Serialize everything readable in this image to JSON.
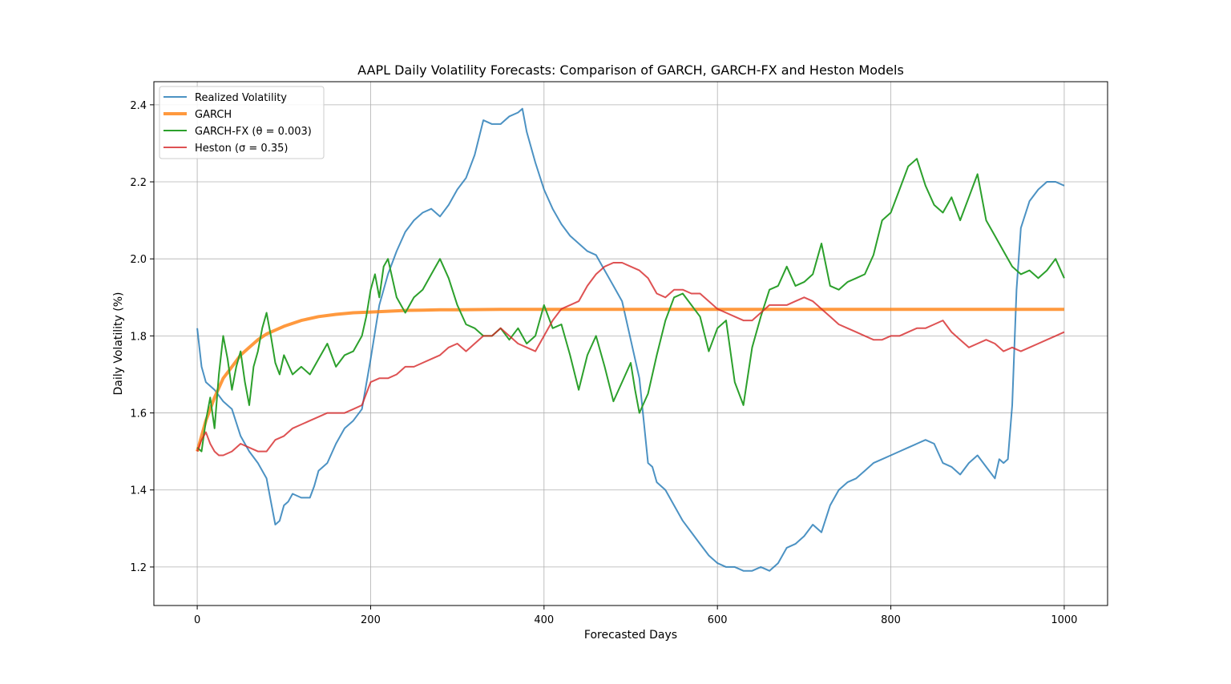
{
  "chart_data": {
    "type": "line",
    "title": "AAPL Daily Volatility Forecasts: Comparison of GARCH, GARCH-FX and Heston Models",
    "xlabel": "Forecasted Days",
    "ylabel": "Daily Volatility (%)",
    "xlim": [
      -50,
      1050
    ],
    "ylim": [
      1.1,
      2.46
    ],
    "xticks": [
      0,
      200,
      400,
      600,
      800,
      1000
    ],
    "yticks": [
      1.2,
      1.4,
      1.6,
      1.8,
      2.0,
      2.2,
      2.4
    ],
    "xtick_labels": [
      "0",
      "200",
      "400",
      "600",
      "800",
      "1000"
    ],
    "ytick_labels": [
      "1.2",
      "1.4",
      "1.6",
      "1.8",
      "2.0",
      "2.2",
      "2.4"
    ],
    "grid": true,
    "legend_position": "upper-left",
    "series": [
      {
        "name": "Realized Volatility",
        "color": "#1f77b4",
        "x": [
          0,
          5,
          10,
          20,
          30,
          40,
          50,
          60,
          70,
          80,
          85,
          90,
          95,
          100,
          105,
          110,
          120,
          130,
          135,
          140,
          150,
          160,
          170,
          180,
          190,
          200,
          210,
          220,
          230,
          240,
          250,
          260,
          270,
          280,
          290,
          300,
          310,
          320,
          330,
          340,
          350,
          360,
          370,
          375,
          380,
          390,
          400,
          410,
          420,
          430,
          440,
          450,
          460,
          470,
          480,
          490,
          500,
          510,
          515,
          520,
          525,
          530,
          540,
          550,
          560,
          570,
          580,
          590,
          600,
          610,
          620,
          630,
          640,
          650,
          660,
          670,
          680,
          690,
          700,
          710,
          720,
          730,
          740,
          750,
          760,
          770,
          780,
          790,
          800,
          810,
          820,
          830,
          840,
          850,
          860,
          870,
          880,
          890,
          900,
          910,
          920,
          925,
          930,
          935,
          940,
          945,
          950,
          960,
          970,
          980,
          990,
          1000
        ],
        "y": [
          1.82,
          1.72,
          1.68,
          1.66,
          1.63,
          1.61,
          1.54,
          1.5,
          1.47,
          1.43,
          1.37,
          1.31,
          1.32,
          1.36,
          1.37,
          1.39,
          1.38,
          1.38,
          1.41,
          1.45,
          1.47,
          1.52,
          1.56,
          1.58,
          1.61,
          1.74,
          1.88,
          1.96,
          2.02,
          2.07,
          2.1,
          2.12,
          2.13,
          2.11,
          2.14,
          2.18,
          2.21,
          2.27,
          2.36,
          2.35,
          2.35,
          2.37,
          2.38,
          2.39,
          2.33,
          2.25,
          2.18,
          2.13,
          2.09,
          2.06,
          2.04,
          2.02,
          2.01,
          1.97,
          1.93,
          1.89,
          1.79,
          1.69,
          1.58,
          1.47,
          1.46,
          1.42,
          1.4,
          1.36,
          1.32,
          1.29,
          1.26,
          1.23,
          1.21,
          1.2,
          1.2,
          1.19,
          1.19,
          1.2,
          1.19,
          1.21,
          1.25,
          1.26,
          1.28,
          1.31,
          1.29,
          1.36,
          1.4,
          1.42,
          1.43,
          1.45,
          1.47,
          1.48,
          1.49,
          1.5,
          1.51,
          1.52,
          1.53,
          1.52,
          1.47,
          1.46,
          1.44,
          1.47,
          1.49,
          1.46,
          1.43,
          1.48,
          1.47,
          1.48,
          1.62,
          1.92,
          2.08,
          2.15,
          2.18,
          2.2,
          2.2,
          2.19
        ]
      },
      {
        "name": "GARCH",
        "color": "#ff7f0e",
        "x": [
          0,
          5,
          10,
          15,
          20,
          30,
          40,
          50,
          60,
          70,
          80,
          90,
          100,
          120,
          140,
          160,
          180,
          200,
          220,
          240,
          260,
          280,
          300,
          350,
          400,
          500,
          600,
          700,
          800,
          900,
          1000
        ],
        "y": [
          1.5,
          1.54,
          1.58,
          1.61,
          1.64,
          1.69,
          1.72,
          1.75,
          1.77,
          1.79,
          1.805,
          1.815,
          1.825,
          1.84,
          1.85,
          1.856,
          1.86,
          1.862,
          1.864,
          1.866,
          1.867,
          1.868,
          1.868,
          1.869,
          1.869,
          1.869,
          1.869,
          1.869,
          1.869,
          1.869,
          1.869
        ]
      },
      {
        "name": "GARCH-FX (θ = 0.003)",
        "color": "#2ca02c",
        "x": [
          0,
          5,
          10,
          15,
          20,
          25,
          30,
          35,
          40,
          45,
          50,
          55,
          60,
          65,
          70,
          75,
          80,
          85,
          90,
          95,
          100,
          110,
          120,
          130,
          140,
          150,
          160,
          170,
          180,
          190,
          195,
          200,
          205,
          210,
          215,
          220,
          230,
          240,
          250,
          260,
          270,
          280,
          290,
          300,
          310,
          320,
          330,
          340,
          350,
          360,
          370,
          380,
          390,
          400,
          410,
          420,
          430,
          440,
          450,
          460,
          470,
          480,
          490,
          500,
          505,
          510,
          520,
          530,
          540,
          550,
          560,
          570,
          580,
          590,
          600,
          610,
          620,
          630,
          640,
          650,
          660,
          670,
          680,
          690,
          700,
          710,
          720,
          730,
          740,
          750,
          760,
          770,
          780,
          790,
          800,
          810,
          820,
          830,
          840,
          850,
          860,
          870,
          880,
          890,
          900,
          910,
          920,
          930,
          940,
          950,
          960,
          970,
          980,
          990,
          1000
        ],
        "y": [
          1.51,
          1.5,
          1.58,
          1.64,
          1.56,
          1.7,
          1.8,
          1.74,
          1.66,
          1.72,
          1.76,
          1.68,
          1.62,
          1.72,
          1.76,
          1.82,
          1.86,
          1.8,
          1.73,
          1.7,
          1.75,
          1.7,
          1.72,
          1.7,
          1.74,
          1.78,
          1.72,
          1.75,
          1.76,
          1.8,
          1.85,
          1.92,
          1.96,
          1.9,
          1.98,
          2.0,
          1.9,
          1.86,
          1.9,
          1.92,
          1.96,
          2.0,
          1.95,
          1.88,
          1.83,
          1.82,
          1.8,
          1.8,
          1.82,
          1.79,
          1.82,
          1.78,
          1.8,
          1.88,
          1.82,
          1.83,
          1.75,
          1.66,
          1.75,
          1.8,
          1.72,
          1.63,
          1.68,
          1.73,
          1.66,
          1.6,
          1.65,
          1.75,
          1.84,
          1.9,
          1.91,
          1.88,
          1.85,
          1.76,
          1.82,
          1.84,
          1.68,
          1.62,
          1.77,
          1.85,
          1.92,
          1.93,
          1.98,
          1.93,
          1.94,
          1.96,
          2.04,
          1.93,
          1.92,
          1.94,
          1.95,
          1.96,
          2.01,
          2.1,
          2.12,
          2.18,
          2.24,
          2.26,
          2.19,
          2.14,
          2.12,
          2.16,
          2.1,
          2.16,
          2.22,
          2.1,
          2.06,
          2.02,
          1.98,
          1.96,
          1.97,
          1.95,
          1.97,
          2.0,
          1.95
        ]
      },
      {
        "name": "Heston (σ = 0.35)",
        "color": "#d62728",
        "x": [
          0,
          5,
          10,
          15,
          20,
          25,
          30,
          40,
          50,
          60,
          70,
          80,
          90,
          100,
          110,
          120,
          130,
          140,
          150,
          160,
          170,
          180,
          190,
          200,
          210,
          220,
          230,
          240,
          250,
          260,
          270,
          280,
          290,
          300,
          310,
          320,
          330,
          340,
          350,
          360,
          370,
          380,
          390,
          400,
          410,
          420,
          430,
          440,
          450,
          460,
          470,
          480,
          490,
          500,
          510,
          520,
          530,
          540,
          550,
          560,
          570,
          580,
          590,
          600,
          610,
          620,
          630,
          640,
          650,
          660,
          670,
          680,
          690,
          700,
          710,
          720,
          730,
          740,
          750,
          760,
          770,
          780,
          790,
          800,
          810,
          820,
          830,
          840,
          850,
          860,
          870,
          880,
          890,
          900,
          910,
          920,
          930,
          940,
          950,
          960,
          970,
          980,
          990,
          1000
        ],
        "y": [
          1.5,
          1.53,
          1.55,
          1.52,
          1.5,
          1.49,
          1.49,
          1.5,
          1.52,
          1.51,
          1.5,
          1.5,
          1.53,
          1.54,
          1.56,
          1.57,
          1.58,
          1.59,
          1.6,
          1.6,
          1.6,
          1.61,
          1.62,
          1.68,
          1.69,
          1.69,
          1.7,
          1.72,
          1.72,
          1.73,
          1.74,
          1.75,
          1.77,
          1.78,
          1.76,
          1.78,
          1.8,
          1.8,
          1.82,
          1.8,
          1.78,
          1.77,
          1.76,
          1.8,
          1.84,
          1.87,
          1.88,
          1.89,
          1.93,
          1.96,
          1.98,
          1.99,
          1.99,
          1.98,
          1.97,
          1.95,
          1.91,
          1.9,
          1.92,
          1.92,
          1.91,
          1.91,
          1.89,
          1.87,
          1.86,
          1.85,
          1.84,
          1.84,
          1.86,
          1.88,
          1.88,
          1.88,
          1.89,
          1.9,
          1.89,
          1.87,
          1.85,
          1.83,
          1.82,
          1.81,
          1.8,
          1.79,
          1.79,
          1.8,
          1.8,
          1.81,
          1.82,
          1.82,
          1.83,
          1.84,
          1.81,
          1.79,
          1.77,
          1.78,
          1.79,
          1.78,
          1.76,
          1.77,
          1.76,
          1.77,
          1.78,
          1.79,
          1.8,
          1.81
        ]
      }
    ]
  }
}
